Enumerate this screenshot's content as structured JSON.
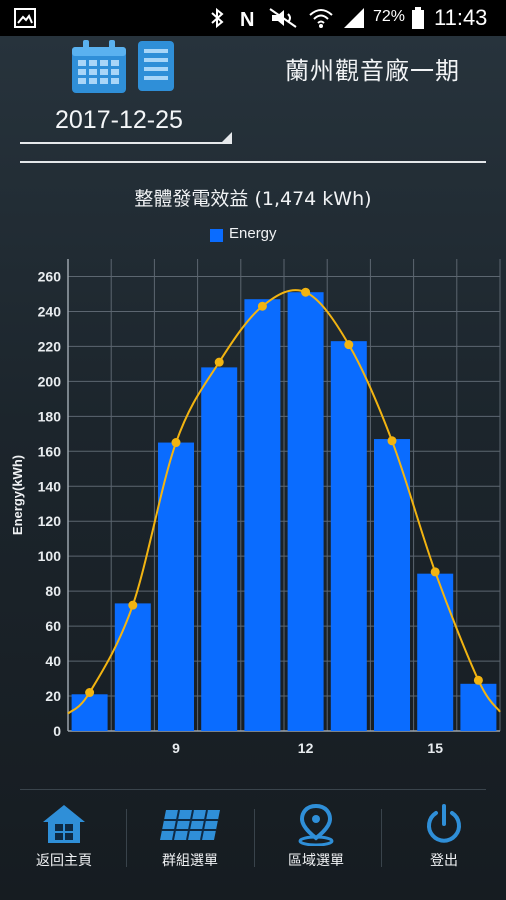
{
  "status_bar": {
    "battery": "72%",
    "time": "11:43"
  },
  "header": {
    "station_name": "蘭州觀音廠一期",
    "date": "2017-12-25",
    "calendar_icon": "calendar-icon",
    "list_icon": "list-icon"
  },
  "chart_data": {
    "type": "bar",
    "title": "整體發電效益 (1,474 kWh)",
    "legend": [
      "Energy"
    ],
    "ylabel": "Energy(kWh)",
    "xlabel": "",
    "x": [
      7,
      8,
      9,
      10,
      11,
      12,
      13,
      14,
      15,
      16
    ],
    "values": [
      21,
      73,
      165,
      208,
      247,
      251,
      223,
      167,
      90,
      27
    ],
    "trend_points": [
      22,
      72,
      165,
      211,
      243,
      251,
      221,
      166,
      91,
      29
    ],
    "x_tick_labels": [
      "9",
      "12",
      "15"
    ],
    "x_tick_values": [
      9,
      12,
      15
    ],
    "y_ticks": [
      "0",
      "20",
      "40",
      "60",
      "80",
      "100",
      "120",
      "140",
      "160",
      "180",
      "200",
      "220",
      "240",
      "260"
    ],
    "ylim": [
      0,
      270
    ],
    "grid": true,
    "colors": {
      "bar": "#0a6cff",
      "line": "#f2b411",
      "grid": "#5c6670"
    }
  },
  "nav": [
    {
      "label": "返回主頁",
      "icon": "home-icon"
    },
    {
      "label": "群組選單",
      "icon": "solar-panel-icon"
    },
    {
      "label": "區域選單",
      "icon": "map-pin-icon"
    },
    {
      "label": "登出",
      "icon": "power-icon"
    }
  ]
}
